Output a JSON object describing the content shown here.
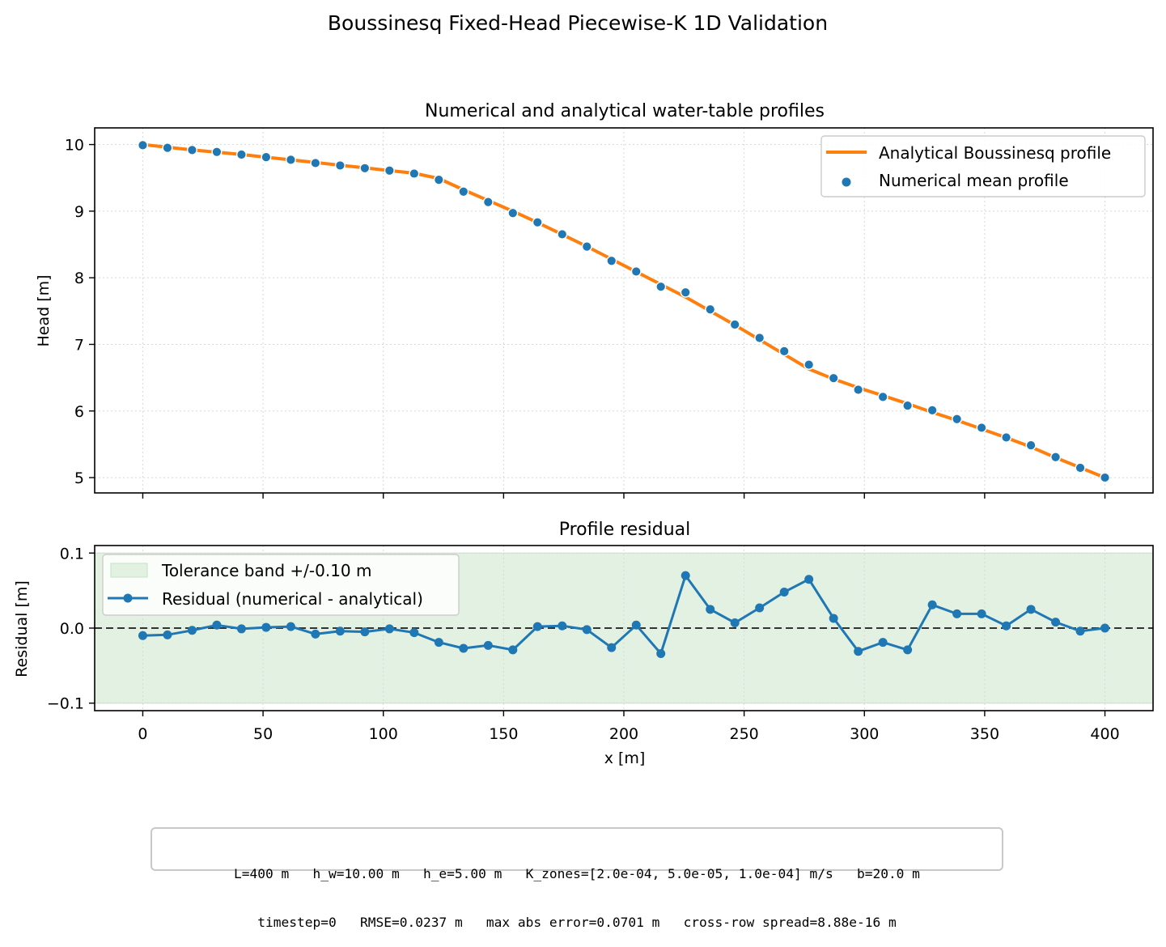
{
  "figure": {
    "suptitle": "Boussinesq Fixed-Head Piecewise-K 1D Validation",
    "info_lines": [
      "L=400 m   h_w=10.00 m   h_e=5.00 m   K_zones=[2.0e-04, 5.0e-05, 1.0e-04] m/s   b=20.0 m",
      "timestep=0   RMSE=0.0237 m   max abs error=0.0701 m   cross-row spread=8.88e-16 m"
    ]
  },
  "colors": {
    "analytical": "#ff7f0e",
    "numerical": "#1f77b4",
    "band": "#e2f1e2",
    "band_edge": "#c4e4c4",
    "zero_line": "#333333",
    "grid": "#d8d8d8"
  },
  "chart_data": [
    {
      "type": "line",
      "title": "Numerical and analytical water-table profiles",
      "xlabel": "",
      "ylabel": "Head [m]",
      "xlim": [
        -20,
        420
      ],
      "ylim": [
        4.77,
        10.25
      ],
      "xticks": [
        0,
        50,
        100,
        150,
        200,
        250,
        300,
        350,
        400
      ],
      "xtick_labels_visible": false,
      "yticks": [
        5,
        6,
        7,
        8,
        9,
        10
      ],
      "grid": true,
      "legend_position": "top-right",
      "analytical": {
        "name": "Analytical Boussinesq profile",
        "x": [
          0,
          10.26,
          20.51,
          30.77,
          41.03,
          51.28,
          61.54,
          71.79,
          82.05,
          92.31,
          102.56,
          112.82,
          123.08,
          133.33,
          143.59,
          153.85,
          164.1,
          174.36,
          184.62,
          194.87,
          205.13,
          215.38,
          225.64,
          235.9,
          246.15,
          256.41,
          266.67,
          276.92,
          287.18,
          297.44,
          307.69,
          317.95,
          328.21,
          338.46,
          348.72,
          358.97,
          369.23,
          379.49,
          389.74,
          400
        ],
        "y": [
          10.0,
          9.96,
          9.92,
          9.885,
          9.85,
          9.81,
          9.77,
          9.73,
          9.69,
          9.65,
          9.61,
          9.57,
          9.49,
          9.32,
          9.16,
          9.0,
          8.83,
          8.65,
          8.47,
          8.28,
          8.09,
          7.9,
          7.71,
          7.5,
          7.29,
          7.07,
          6.85,
          6.63,
          6.48,
          6.35,
          6.23,
          6.11,
          5.98,
          5.86,
          5.73,
          5.6,
          5.46,
          5.3,
          5.15,
          5.0
        ]
      },
      "numerical": {
        "name": "Numerical mean profile",
        "x": [
          0,
          10.26,
          20.51,
          30.77,
          41.03,
          51.28,
          61.54,
          71.79,
          82.05,
          92.31,
          102.56,
          112.82,
          123.08,
          133.33,
          143.59,
          153.85,
          164.1,
          174.36,
          184.62,
          194.87,
          205.13,
          215.38,
          225.64,
          235.9,
          246.15,
          256.41,
          266.67,
          276.92,
          287.18,
          297.44,
          307.69,
          317.95,
          328.21,
          338.46,
          348.72,
          358.97,
          369.23,
          379.49,
          389.74,
          400
        ],
        "y": [
          9.99,
          9.951,
          9.917,
          9.889,
          9.849,
          9.811,
          9.772,
          9.722,
          9.686,
          9.645,
          9.609,
          9.564,
          9.471,
          9.293,
          9.137,
          8.971,
          8.832,
          8.653,
          8.468,
          8.254,
          8.094,
          7.866,
          7.78,
          7.525,
          7.297,
          7.097,
          6.898,
          6.695,
          6.493,
          6.319,
          6.211,
          6.081,
          6.011,
          5.879,
          5.749,
          5.603,
          5.485,
          5.308,
          5.147,
          5.0
        ]
      }
    },
    {
      "type": "line",
      "title": "Profile residual",
      "xlabel": "x [m]",
      "ylabel": "Residual [m]",
      "xlim": [
        -20,
        420
      ],
      "ylim": [
        -0.11,
        0.11
      ],
      "xticks": [
        0,
        50,
        100,
        150,
        200,
        250,
        300,
        350,
        400
      ],
      "yticks": [
        -0.1,
        0.0,
        0.1
      ],
      "ytick_labels": [
        "−0.1",
        "0.0",
        "0.1"
      ],
      "grid": true,
      "legend_position": "top-left",
      "band": {
        "name": "Tolerance band +/-0.10 m",
        "lower": -0.1,
        "upper": 0.1
      },
      "series": [
        {
          "name": "Residual (numerical - analytical)",
          "x": [
            0,
            10.26,
            20.51,
            30.77,
            41.03,
            51.28,
            61.54,
            71.79,
            82.05,
            92.31,
            102.56,
            112.82,
            123.08,
            133.33,
            143.59,
            153.85,
            164.1,
            174.36,
            184.62,
            194.87,
            205.13,
            215.38,
            225.64,
            235.9,
            246.15,
            256.41,
            266.67,
            276.92,
            287.18,
            297.44,
            307.69,
            317.95,
            328.21,
            338.46,
            348.72,
            358.97,
            369.23,
            379.49,
            389.74,
            400
          ],
          "y": [
            -0.01,
            -0.009,
            -0.003,
            0.004,
            -0.001,
            0.001,
            0.002,
            -0.008,
            -0.004,
            -0.005,
            -0.001,
            -0.006,
            -0.019,
            -0.027,
            -0.023,
            -0.029,
            0.002,
            0.003,
            -0.002,
            -0.026,
            0.004,
            -0.034,
            0.07,
            0.025,
            0.007,
            0.027,
            0.048,
            0.065,
            0.013,
            -0.031,
            -0.019,
            -0.029,
            0.031,
            0.019,
            0.019,
            0.003,
            0.025,
            0.008,
            -0.004,
            0.0
          ]
        }
      ]
    }
  ]
}
